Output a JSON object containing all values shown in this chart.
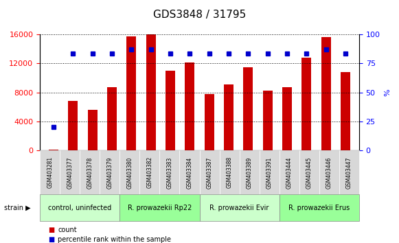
{
  "title": "GDS3848 / 31795",
  "samples": [
    "GSM403281",
    "GSM403377",
    "GSM403378",
    "GSM403379",
    "GSM403380",
    "GSM403382",
    "GSM403383",
    "GSM403384",
    "GSM403387",
    "GSM403388",
    "GSM403389",
    "GSM403391",
    "GSM403444",
    "GSM403445",
    "GSM403446",
    "GSM403447"
  ],
  "counts": [
    150,
    6800,
    5600,
    8700,
    15700,
    15950,
    11000,
    12100,
    7800,
    9100,
    11400,
    8200,
    8700,
    12800,
    15600,
    10800
  ],
  "percentiles": [
    20,
    83,
    83,
    83,
    87,
    87,
    83,
    83,
    83,
    83,
    83,
    83,
    83,
    83,
    87,
    83
  ],
  "groups": [
    {
      "label": "control, uninfected",
      "start": 0,
      "end": 3,
      "color": "#ccffcc"
    },
    {
      "label": "R. prowazekii Rp22",
      "start": 4,
      "end": 7,
      "color": "#99ff99"
    },
    {
      "label": "R. prowazekii Evir",
      "start": 8,
      "end": 11,
      "color": "#ccffcc"
    },
    {
      "label": "R. prowazekii Erus",
      "start": 12,
      "end": 15,
      "color": "#99ff99"
    }
  ],
  "ylim_left": [
    0,
    16000
  ],
  "ylim_right": [
    0,
    100
  ],
  "yticks_left": [
    0,
    4000,
    8000,
    12000,
    16000
  ],
  "yticks_right": [
    0,
    25,
    50,
    75,
    100
  ],
  "bar_color": "#cc0000",
  "dot_color": "#0000cc",
  "bg_plot": "#f0f0f0",
  "bg_xticklabel": "#d0d0d0",
  "legend_count_color": "#cc0000",
  "legend_pct_color": "#0000cc"
}
